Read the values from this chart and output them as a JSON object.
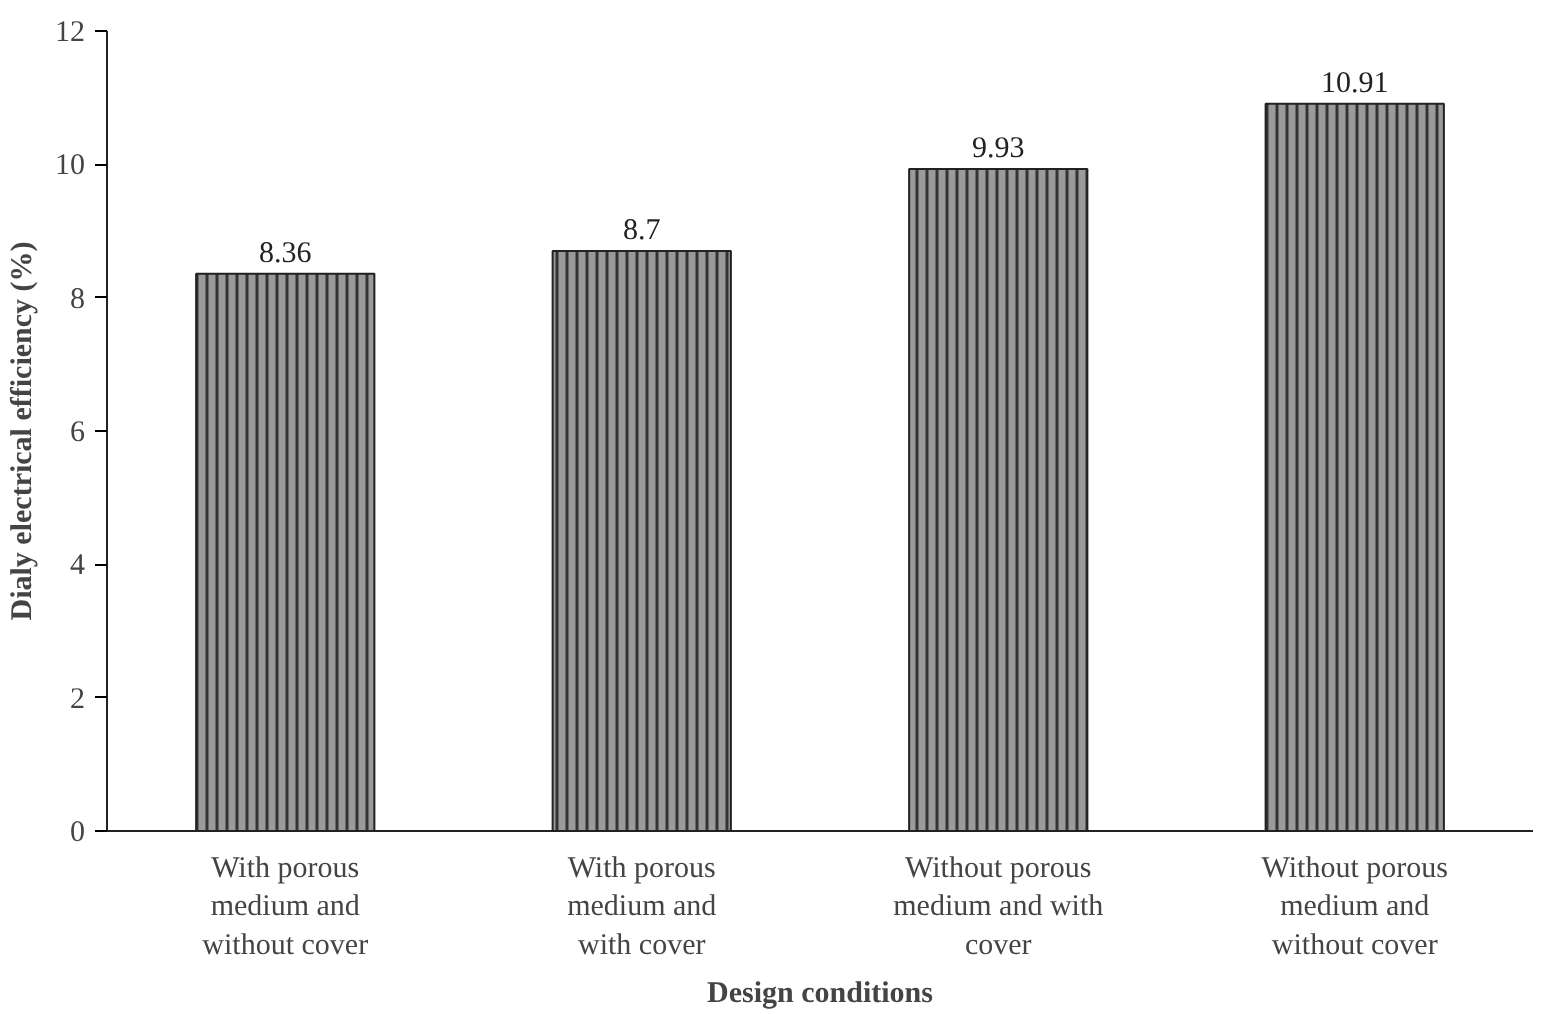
{
  "chart_data": {
    "type": "bar",
    "xlabel": "Design conditions",
    "ylabel": "Dialy electrical efficiency (%)",
    "categories": [
      "With porous\nmedium and\nwithout cover",
      "With porous\nmedium and\nwith cover",
      "Without porous\nmedium and with\ncover",
      "Without porous\nmedium and\nwithout cover"
    ],
    "values": [
      8.36,
      8.7,
      9.93,
      10.91
    ],
    "color": "#9a9a9a",
    "ylim": [
      0,
      12
    ],
    "yticks": [
      0,
      2,
      4,
      6,
      8,
      10,
      12
    ],
    "data_labels": true,
    "grid": false
  }
}
